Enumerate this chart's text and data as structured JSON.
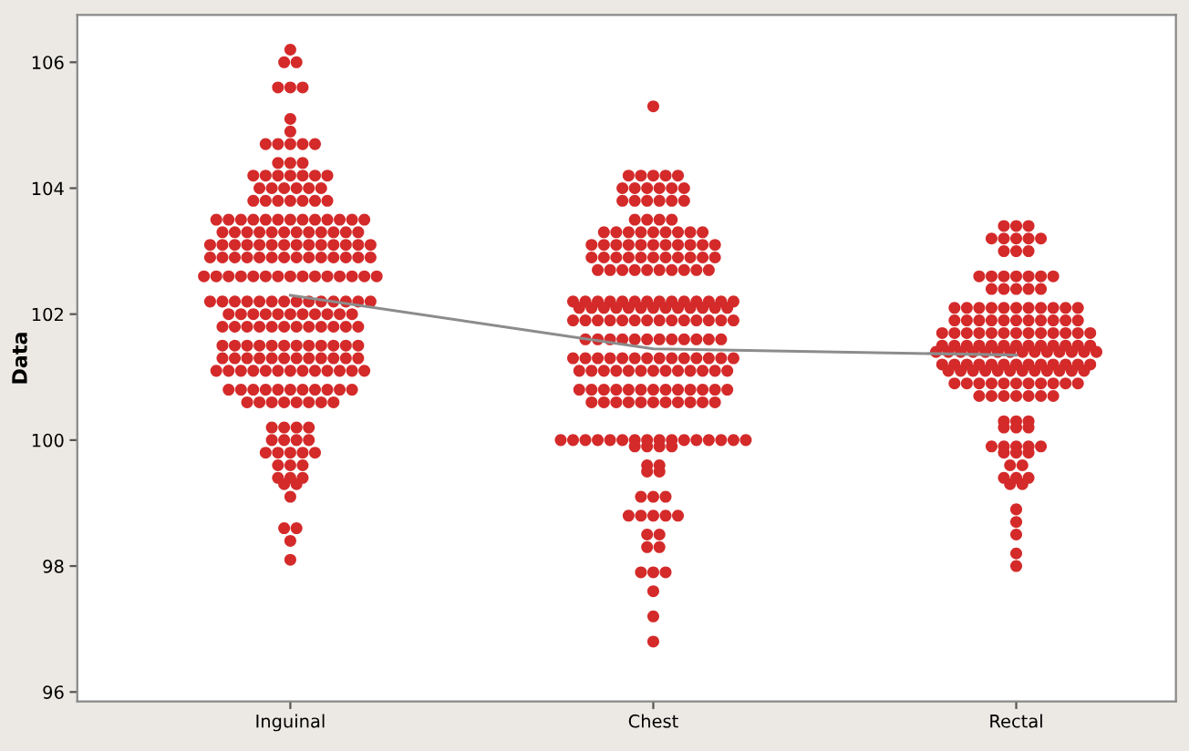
{
  "chart_data": {
    "type": "scatter",
    "ylabel": "Data",
    "categories": [
      "Inguinal",
      "Chest",
      "Rectal"
    ],
    "ylim": [
      95.85,
      106.75
    ],
    "yticks": [
      96,
      98,
      100,
      102,
      104,
      106
    ],
    "grid": false,
    "marker": "circle",
    "series": [
      {
        "type": "scatter",
        "color": "#d42a2a",
        "x": [
          "Inguinal",
          "Inguinal",
          "Inguinal",
          "Inguinal",
          "Inguinal",
          "Inguinal",
          "Inguinal",
          "Inguinal",
          "Inguinal",
          "Inguinal",
          "Inguinal",
          "Inguinal",
          "Inguinal",
          "Inguinal",
          "Inguinal",
          "Inguinal",
          "Inguinal",
          "Inguinal",
          "Inguinal",
          "Inguinal",
          "Inguinal",
          "Inguinal",
          "Inguinal",
          "Inguinal",
          "Inguinal",
          "Inguinal",
          "Inguinal",
          "Inguinal",
          "Inguinal",
          "Inguinal",
          "Inguinal",
          "Inguinal",
          "Inguinal",
          "Inguinal",
          "Inguinal",
          "Inguinal",
          "Inguinal",
          "Inguinal",
          "Inguinal",
          "Inguinal",
          "Inguinal",
          "Inguinal",
          "Inguinal",
          "Inguinal",
          "Inguinal",
          "Inguinal",
          "Inguinal",
          "Inguinal",
          "Inguinal",
          "Inguinal",
          "Inguinal",
          "Inguinal",
          "Inguinal",
          "Inguinal",
          "Inguinal",
          "Inguinal",
          "Inguinal",
          "Inguinal",
          "Inguinal",
          "Inguinal",
          "Inguinal",
          "Inguinal",
          "Inguinal",
          "Inguinal",
          "Inguinal",
          "Inguinal",
          "Inguinal",
          "Inguinal",
          "Inguinal",
          "Inguinal",
          "Inguinal",
          "Inguinal",
          "Inguinal",
          "Inguinal",
          "Inguinal",
          "Inguinal",
          "Inguinal",
          "Inguinal",
          "Inguinal",
          "Inguinal",
          "Inguinal",
          "Inguinal",
          "Inguinal",
          "Inguinal",
          "Inguinal",
          "Inguinal",
          "Inguinal",
          "Inguinal",
          "Inguinal",
          "Inguinal",
          "Inguinal",
          "Inguinal",
          "Inguinal",
          "Inguinal",
          "Inguinal",
          "Inguinal",
          "Inguinal",
          "Inguinal",
          "Inguinal",
          "Inguinal",
          "Inguinal",
          "Inguinal",
          "Inguinal",
          "Inguinal",
          "Inguinal",
          "Inguinal",
          "Inguinal",
          "Inguinal",
          "Inguinal",
          "Inguinal",
          "Inguinal",
          "Inguinal",
          "Inguinal",
          "Inguinal",
          "Inguinal",
          "Inguinal",
          "Inguinal",
          "Inguinal",
          "Inguinal",
          "Inguinal",
          "Inguinal",
          "Inguinal",
          "Inguinal",
          "Inguinal",
          "Inguinal",
          "Inguinal",
          "Inguinal",
          "Inguinal",
          "Inguinal",
          "Inguinal",
          "Inguinal",
          "Inguinal",
          "Inguinal",
          "Inguinal",
          "Inguinal",
          "Inguinal",
          "Inguinal",
          "Inguinal",
          "Inguinal",
          "Inguinal",
          "Inguinal",
          "Inguinal",
          "Inguinal",
          "Inguinal",
          "Inguinal",
          "Inguinal",
          "Inguinal",
          "Inguinal",
          "Inguinal",
          "Inguinal",
          "Inguinal",
          "Inguinal",
          "Inguinal",
          "Inguinal",
          "Inguinal",
          "Inguinal",
          "Inguinal",
          "Inguinal",
          "Inguinal",
          "Inguinal",
          "Inguinal",
          "Inguinal",
          "Inguinal",
          "Inguinal",
          "Inguinal",
          "Inguinal",
          "Inguinal",
          "Inguinal",
          "Inguinal",
          "Inguinal",
          "Inguinal",
          "Inguinal",
          "Inguinal",
          "Inguinal",
          "Inguinal",
          "Inguinal",
          "Inguinal",
          "Inguinal",
          "Inguinal",
          "Inguinal",
          "Inguinal",
          "Inguinal",
          "Inguinal",
          "Inguinal",
          "Inguinal",
          "Inguinal",
          "Inguinal",
          "Inguinal",
          "Inguinal",
          "Inguinal",
          "Inguinal",
          "Inguinal",
          "Inguinal",
          "Inguinal",
          "Inguinal",
          "Inguinal",
          "Inguinal",
          "Inguinal",
          "Inguinal",
          "Inguinal",
          "Inguinal",
          "Inguinal",
          "Inguinal",
          "Inguinal",
          "Inguinal",
          "Inguinal",
          "Inguinal",
          "Inguinal",
          "Inguinal",
          "Inguinal",
          "Inguinal",
          "Inguinal",
          "Inguinal",
          "Inguinal",
          "Inguinal",
          "Inguinal",
          "Inguinal",
          "Inguinal",
          "Inguinal",
          "Inguinal",
          "Inguinal",
          "Inguinal",
          "Inguinal"
        ],
        "values": [
          106.2,
          106.0,
          106.0,
          105.6,
          105.6,
          105.6,
          105.1,
          104.9,
          104.7,
          104.7,
          104.7,
          104.7,
          104.7,
          104.4,
          104.4,
          104.4,
          104.2,
          104.2,
          104.2,
          104.2,
          104.2,
          104.2,
          104.2,
          104.0,
          104.0,
          104.0,
          104.0,
          104.0,
          104.0,
          103.8,
          103.8,
          103.8,
          103.8,
          103.8,
          103.8,
          103.8,
          103.5,
          103.5,
          103.5,
          103.5,
          103.5,
          103.5,
          103.5,
          103.5,
          103.5,
          103.5,
          103.5,
          103.5,
          103.5,
          103.3,
          103.3,
          103.3,
          103.3,
          103.3,
          103.3,
          103.3,
          103.3,
          103.3,
          103.3,
          103.3,
          103.3,
          103.1,
          103.1,
          103.1,
          103.1,
          103.1,
          103.1,
          103.1,
          103.1,
          103.1,
          103.1,
          103.1,
          103.1,
          103.1,
          103.1,
          102.9,
          102.9,
          102.9,
          102.9,
          102.9,
          102.9,
          102.9,
          102.9,
          102.9,
          102.9,
          102.9,
          102.9,
          102.9,
          102.9,
          102.6,
          102.6,
          102.6,
          102.6,
          102.6,
          102.6,
          102.6,
          102.6,
          102.6,
          102.6,
          102.6,
          102.6,
          102.6,
          102.6,
          102.6,
          102.2,
          102.2,
          102.2,
          102.2,
          102.2,
          102.2,
          102.2,
          102.2,
          102.2,
          102.2,
          102.2,
          102.2,
          102.2,
          102.2,
          102.0,
          102.0,
          102.0,
          102.0,
          102.0,
          102.0,
          102.0,
          102.0,
          102.0,
          102.0,
          102.0,
          101.8,
          101.8,
          101.8,
          101.8,
          101.8,
          101.8,
          101.8,
          101.8,
          101.8,
          101.8,
          101.8,
          101.8,
          101.5,
          101.5,
          101.5,
          101.5,
          101.5,
          101.5,
          101.5,
          101.5,
          101.5,
          101.5,
          101.5,
          101.5,
          101.3,
          101.3,
          101.3,
          101.3,
          101.3,
          101.3,
          101.3,
          101.3,
          101.3,
          101.3,
          101.3,
          101.3,
          101.1,
          101.1,
          101.1,
          101.1,
          101.1,
          101.1,
          101.1,
          101.1,
          101.1,
          101.1,
          101.1,
          101.1,
          101.1,
          100.8,
          100.8,
          100.8,
          100.8,
          100.8,
          100.8,
          100.8,
          100.8,
          100.8,
          100.8,
          100.8,
          100.6,
          100.6,
          100.6,
          100.6,
          100.6,
          100.6,
          100.6,
          100.6,
          100.2,
          100.2,
          100.2,
          100.2,
          100.0,
          100.0,
          100.0,
          100.0,
          99.8,
          99.8,
          99.8,
          99.8,
          99.8,
          99.6,
          99.6,
          99.6,
          99.4,
          99.4,
          99.4,
          99.3,
          99.3,
          99.1,
          98.6,
          98.6,
          98.4,
          98.1
        ]
      },
      {
        "type": "scatter",
        "color": "#d42a2a",
        "x": [
          "Chest",
          "Chest",
          "Chest",
          "Chest",
          "Chest",
          "Chest",
          "Chest",
          "Chest",
          "Chest",
          "Chest",
          "Chest",
          "Chest",
          "Chest",
          "Chest",
          "Chest",
          "Chest",
          "Chest",
          "Chest",
          "Chest",
          "Chest",
          "Chest",
          "Chest",
          "Chest",
          "Chest",
          "Chest",
          "Chest",
          "Chest",
          "Chest",
          "Chest",
          "Chest",
          "Chest",
          "Chest",
          "Chest",
          "Chest",
          "Chest",
          "Chest",
          "Chest",
          "Chest",
          "Chest",
          "Chest",
          "Chest",
          "Chest",
          "Chest",
          "Chest",
          "Chest",
          "Chest",
          "Chest",
          "Chest",
          "Chest",
          "Chest",
          "Chest",
          "Chest",
          "Chest",
          "Chest",
          "Chest",
          "Chest",
          "Chest",
          "Chest",
          "Chest",
          "Chest",
          "Chest",
          "Chest",
          "Chest",
          "Chest",
          "Chest",
          "Chest",
          "Chest",
          "Chest",
          "Chest",
          "Chest",
          "Chest",
          "Chest",
          "Chest",
          "Chest",
          "Chest",
          "Chest",
          "Chest",
          "Chest",
          "Chest",
          "Chest",
          "Chest",
          "Chest",
          "Chest",
          "Chest",
          "Chest",
          "Chest",
          "Chest",
          "Chest",
          "Chest",
          "Chest",
          "Chest",
          "Chest",
          "Chest",
          "Chest",
          "Chest",
          "Chest",
          "Chest",
          "Chest",
          "Chest",
          "Chest",
          "Chest",
          "Chest",
          "Chest",
          "Chest",
          "Chest",
          "Chest",
          "Chest",
          "Chest",
          "Chest",
          "Chest",
          "Chest",
          "Chest",
          "Chest",
          "Chest",
          "Chest",
          "Chest",
          "Chest",
          "Chest",
          "Chest",
          "Chest",
          "Chest",
          "Chest",
          "Chest",
          "Chest",
          "Chest",
          "Chest",
          "Chest",
          "Chest",
          "Chest",
          "Chest",
          "Chest",
          "Chest",
          "Chest",
          "Chest",
          "Chest",
          "Chest",
          "Chest",
          "Chest",
          "Chest",
          "Chest",
          "Chest",
          "Chest",
          "Chest",
          "Chest",
          "Chest",
          "Chest",
          "Chest",
          "Chest",
          "Chest",
          "Chest",
          "Chest",
          "Chest",
          "Chest",
          "Chest",
          "Chest",
          "Chest",
          "Chest",
          "Chest",
          "Chest",
          "Chest",
          "Chest",
          "Chest",
          "Chest",
          "Chest",
          "Chest",
          "Chest",
          "Chest",
          "Chest",
          "Chest",
          "Chest",
          "Chest",
          "Chest",
          "Chest",
          "Chest",
          "Chest",
          "Chest",
          "Chest",
          "Chest",
          "Chest",
          "Chest",
          "Chest",
          "Chest",
          "Chest",
          "Chest",
          "Chest",
          "Chest",
          "Chest",
          "Chest",
          "Chest",
          "Chest",
          "Chest",
          "Chest",
          "Chest",
          "Chest",
          "Chest",
          "Chest",
          "Chest",
          "Chest",
          "Chest",
          "Chest",
          "Chest",
          "Chest",
          "Chest",
          "Chest",
          "Chest",
          "Chest",
          "Chest",
          "Chest",
          "Chest"
        ],
        "values": [
          105.3,
          104.2,
          104.2,
          104.2,
          104.2,
          104.2,
          104.0,
          104.0,
          104.0,
          104.0,
          104.0,
          104.0,
          103.8,
          103.8,
          103.8,
          103.8,
          103.8,
          103.8,
          103.5,
          103.5,
          103.5,
          103.5,
          103.3,
          103.3,
          103.3,
          103.3,
          103.3,
          103.3,
          103.3,
          103.3,
          103.3,
          103.1,
          103.1,
          103.1,
          103.1,
          103.1,
          103.1,
          103.1,
          103.1,
          103.1,
          103.1,
          103.1,
          102.9,
          102.9,
          102.9,
          102.9,
          102.9,
          102.9,
          102.9,
          102.9,
          102.9,
          102.9,
          102.9,
          102.7,
          102.7,
          102.7,
          102.7,
          102.7,
          102.7,
          102.7,
          102.7,
          102.7,
          102.7,
          102.2,
          102.2,
          102.2,
          102.2,
          102.2,
          102.2,
          102.2,
          102.2,
          102.2,
          102.2,
          102.2,
          102.2,
          102.2,
          102.2,
          102.1,
          102.1,
          102.1,
          102.1,
          102.1,
          102.1,
          102.1,
          102.1,
          102.1,
          102.1,
          102.1,
          102.1,
          102.1,
          101.9,
          101.9,
          101.9,
          101.9,
          101.9,
          101.9,
          101.9,
          101.9,
          101.9,
          101.9,
          101.9,
          101.9,
          101.9,
          101.9,
          101.6,
          101.6,
          101.6,
          101.6,
          101.6,
          101.6,
          101.6,
          101.6,
          101.6,
          101.6,
          101.6,
          101.6,
          101.3,
          101.3,
          101.3,
          101.3,
          101.3,
          101.3,
          101.3,
          101.3,
          101.3,
          101.3,
          101.3,
          101.3,
          101.3,
          101.3,
          101.1,
          101.1,
          101.1,
          101.1,
          101.1,
          101.1,
          101.1,
          101.1,
          101.1,
          101.1,
          101.1,
          101.1,
          101.1,
          100.8,
          100.8,
          100.8,
          100.8,
          100.8,
          100.8,
          100.8,
          100.8,
          100.8,
          100.8,
          100.8,
          100.8,
          100.8,
          100.6,
          100.6,
          100.6,
          100.6,
          100.6,
          100.6,
          100.6,
          100.6,
          100.6,
          100.6,
          100.6,
          100.0,
          100.0,
          100.0,
          100.0,
          100.0,
          100.0,
          100.0,
          100.0,
          100.0,
          100.0,
          100.0,
          100.0,
          100.0,
          100.0,
          100.0,
          100.0,
          99.9,
          99.9,
          99.9,
          99.9,
          99.6,
          99.6,
          99.5,
          99.5,
          99.1,
          99.1,
          99.1,
          98.8,
          98.8,
          98.8,
          98.8,
          98.8,
          98.5,
          98.5,
          98.3,
          98.3,
          97.9,
          97.9,
          97.9,
          97.6,
          97.2,
          96.8
        ]
      },
      {
        "type": "scatter",
        "color": "#d42a2a",
        "x": [
          "Rectal",
          "Rectal",
          "Rectal",
          "Rectal",
          "Rectal",
          "Rectal",
          "Rectal",
          "Rectal",
          "Rectal",
          "Rectal",
          "Rectal",
          "Rectal",
          "Rectal",
          "Rectal",
          "Rectal",
          "Rectal",
          "Rectal",
          "Rectal",
          "Rectal",
          "Rectal",
          "Rectal",
          "Rectal",
          "Rectal",
          "Rectal",
          "Rectal",
          "Rectal",
          "Rectal",
          "Rectal",
          "Rectal",
          "Rectal",
          "Rectal",
          "Rectal",
          "Rectal",
          "Rectal",
          "Rectal",
          "Rectal",
          "Rectal",
          "Rectal",
          "Rectal",
          "Rectal",
          "Rectal",
          "Rectal",
          "Rectal",
          "Rectal",
          "Rectal",
          "Rectal",
          "Rectal",
          "Rectal",
          "Rectal",
          "Rectal",
          "Rectal",
          "Rectal",
          "Rectal",
          "Rectal",
          "Rectal",
          "Rectal",
          "Rectal",
          "Rectal",
          "Rectal",
          "Rectal",
          "Rectal",
          "Rectal",
          "Rectal",
          "Rectal",
          "Rectal",
          "Rectal",
          "Rectal",
          "Rectal",
          "Rectal",
          "Rectal",
          "Rectal",
          "Rectal",
          "Rectal",
          "Rectal",
          "Rectal",
          "Rectal",
          "Rectal",
          "Rectal",
          "Rectal",
          "Rectal",
          "Rectal",
          "Rectal",
          "Rectal",
          "Rectal",
          "Rectal",
          "Rectal",
          "Rectal",
          "Rectal",
          "Rectal",
          "Rectal",
          "Rectal",
          "Rectal",
          "Rectal",
          "Rectal",
          "Rectal",
          "Rectal",
          "Rectal",
          "Rectal",
          "Rectal",
          "Rectal",
          "Rectal",
          "Rectal",
          "Rectal",
          "Rectal",
          "Rectal",
          "Rectal",
          "Rectal",
          "Rectal",
          "Rectal",
          "Rectal",
          "Rectal",
          "Rectal",
          "Rectal",
          "Rectal",
          "Rectal",
          "Rectal",
          "Rectal",
          "Rectal",
          "Rectal",
          "Rectal",
          "Rectal",
          "Rectal",
          "Rectal",
          "Rectal",
          "Rectal",
          "Rectal",
          "Rectal",
          "Rectal",
          "Rectal",
          "Rectal",
          "Rectal",
          "Rectal",
          "Rectal",
          "Rectal",
          "Rectal",
          "Rectal",
          "Rectal",
          "Rectal",
          "Rectal",
          "Rectal",
          "Rectal",
          "Rectal",
          "Rectal",
          "Rectal",
          "Rectal",
          "Rectal",
          "Rectal",
          "Rectal",
          "Rectal",
          "Rectal",
          "Rectal",
          "Rectal",
          "Rectal",
          "Rectal"
        ],
        "values": [
          103.4,
          103.4,
          103.4,
          103.2,
          103.2,
          103.2,
          103.2,
          103.2,
          103.0,
          103.0,
          103.0,
          102.6,
          102.6,
          102.6,
          102.6,
          102.6,
          102.6,
          102.6,
          102.4,
          102.4,
          102.4,
          102.4,
          102.4,
          102.1,
          102.1,
          102.1,
          102.1,
          102.1,
          102.1,
          102.1,
          102.1,
          102.1,
          102.1,
          102.1,
          101.9,
          101.9,
          101.9,
          101.9,
          101.9,
          101.9,
          101.9,
          101.9,
          101.9,
          101.9,
          101.9,
          101.7,
          101.7,
          101.7,
          101.7,
          101.7,
          101.7,
          101.7,
          101.7,
          101.7,
          101.7,
          101.7,
          101.7,
          101.7,
          101.5,
          101.5,
          101.5,
          101.5,
          101.5,
          101.5,
          101.5,
          101.5,
          101.5,
          101.5,
          101.5,
          101.5,
          101.5,
          101.4,
          101.4,
          101.4,
          101.4,
          101.4,
          101.4,
          101.4,
          101.4,
          101.4,
          101.4,
          101.4,
          101.4,
          101.4,
          101.4,
          101.2,
          101.2,
          101.2,
          101.2,
          101.2,
          101.2,
          101.2,
          101.2,
          101.2,
          101.2,
          101.2,
          101.2,
          101.2,
          101.1,
          101.1,
          101.1,
          101.1,
          101.1,
          101.1,
          101.1,
          101.1,
          101.1,
          101.1,
          101.1,
          101.1,
          100.9,
          100.9,
          100.9,
          100.9,
          100.9,
          100.9,
          100.9,
          100.9,
          100.9,
          100.9,
          100.9,
          100.7,
          100.7,
          100.7,
          100.7,
          100.7,
          100.7,
          100.7,
          100.3,
          100.3,
          100.3,
          100.2,
          100.2,
          100.2,
          99.9,
          99.9,
          99.9,
          99.9,
          99.9,
          99.8,
          99.8,
          99.8,
          99.6,
          99.6,
          99.4,
          99.4,
          99.4,
          99.3,
          99.3,
          98.9,
          98.7,
          98.5,
          98.2,
          98.0
        ]
      },
      {
        "type": "line",
        "color": "#8c8c8c",
        "marker": "none",
        "x": [
          "Inguinal",
          "Chest",
          "Rectal"
        ],
        "values": [
          102.3,
          101.45,
          101.35
        ]
      }
    ]
  }
}
